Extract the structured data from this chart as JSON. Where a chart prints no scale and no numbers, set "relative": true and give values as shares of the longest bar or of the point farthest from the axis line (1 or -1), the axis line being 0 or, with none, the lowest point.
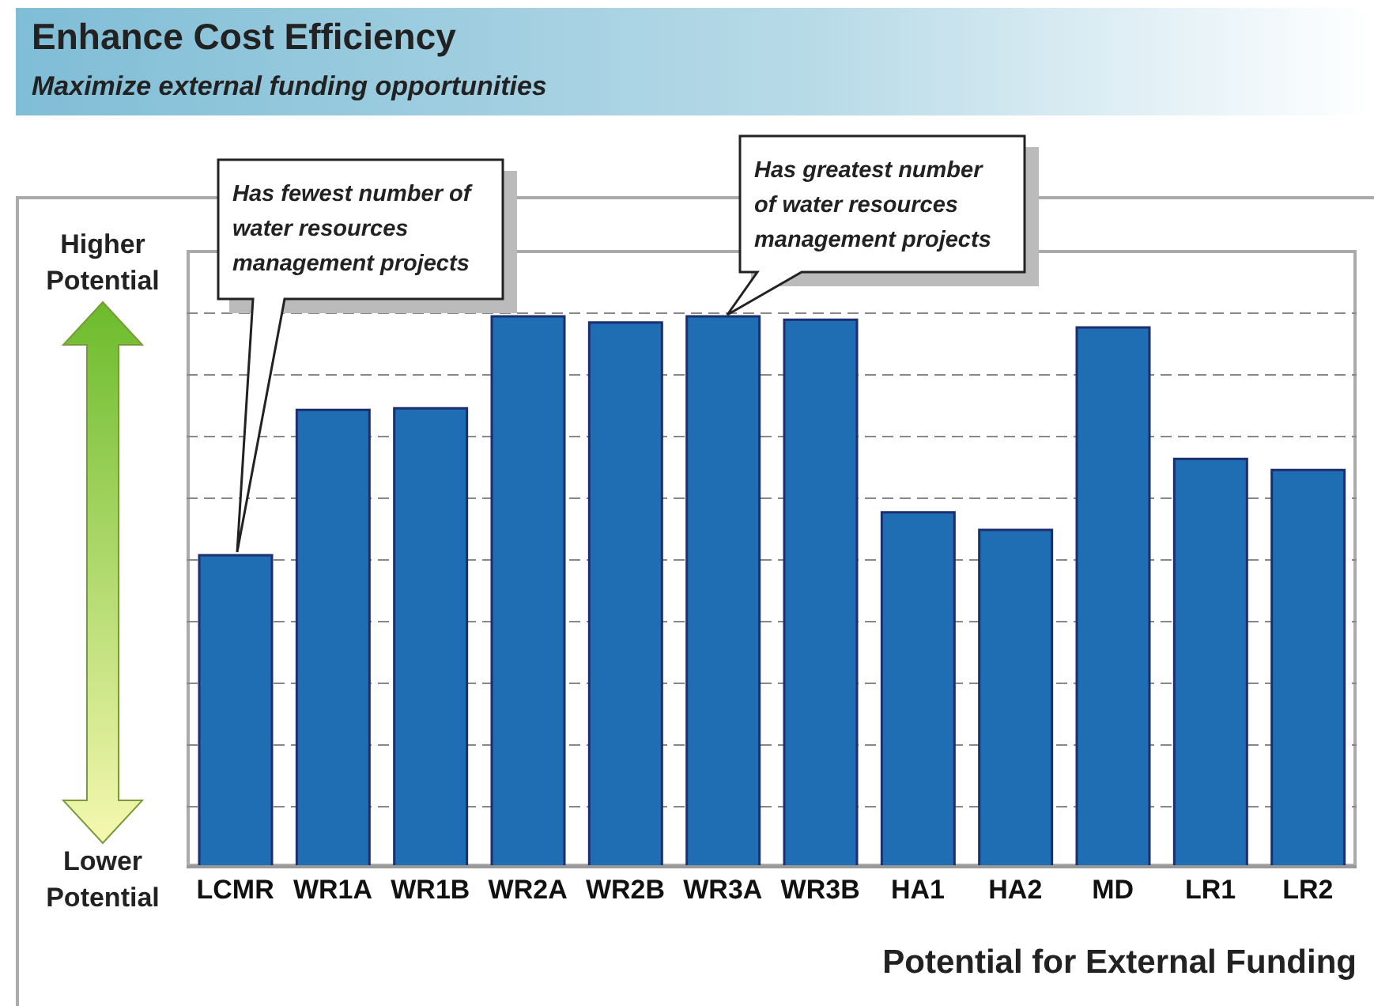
{
  "chart_data": {
    "type": "bar",
    "title": "Enhance Cost Efficiency",
    "subtitle": "Maximize external funding opportunities",
    "xlabel": "Potential for External Funding",
    "categories": [
      "LCMR",
      "WR1A",
      "WR1B",
      "WR2A",
      "WR2B",
      "WR3A",
      "WR3B",
      "HA1",
      "HA2",
      "MD",
      "LR1",
      "LR2"
    ],
    "values": [
      0.566,
      0.83,
      0.833,
      1.0,
      0.989,
      1.0,
      0.994,
      0.644,
      0.612,
      0.98,
      0.741,
      0.721
    ],
    "color": "#1f6db3",
    "relative": true,
    "grid": "y",
    "annotations": [
      "Higher Potential",
      "Lower Potential",
      "Has fewest number of water resources management projects",
      "Has greatest number of water resources management projects"
    ]
  }
}
